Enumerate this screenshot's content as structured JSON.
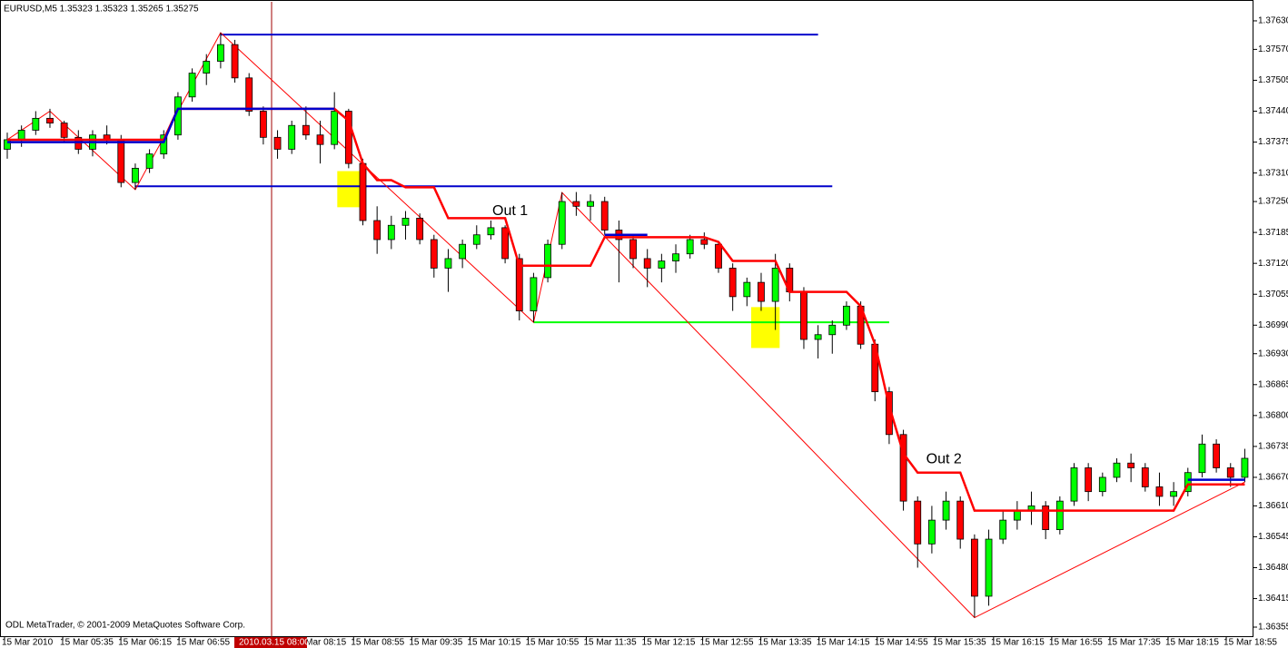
{
  "chart_data": {
    "type": "candlestick",
    "title": "EURUSD,M5  1.35323 1.35323 1.35265 1.35275",
    "footer": "ODL MetaTrader, © 2001-2009 MetaQuotes Software Corp.",
    "cursor_label": "2010.03.15 08:00",
    "ylim": [
      1.36334,
      1.3767
    ],
    "yticks": [
      {
        "value": 1.3763,
        "label": "1.37630"
      },
      {
        "value": 1.3757,
        "label": "1.37570"
      },
      {
        "value": 1.37505,
        "label": "1.37505"
      },
      {
        "value": 1.3744,
        "label": "1.37440"
      },
      {
        "value": 1.37375,
        "label": "1.37375"
      },
      {
        "value": 1.3731,
        "label": "1.37310"
      },
      {
        "value": 1.3725,
        "label": "1.37250"
      },
      {
        "value": 1.37185,
        "label": "1.37185"
      },
      {
        "value": 1.3712,
        "label": "1.37120"
      },
      {
        "value": 1.37055,
        "label": "1.37055"
      },
      {
        "value": 1.3699,
        "label": "1.36990"
      },
      {
        "value": 1.3693,
        "label": "1.36930"
      },
      {
        "value": 1.36865,
        "label": "1.36865"
      },
      {
        "value": 1.368,
        "label": "1.36800"
      },
      {
        "value": 1.36735,
        "label": "1.36735"
      },
      {
        "value": 1.3667,
        "label": "1.36670"
      },
      {
        "value": 1.3661,
        "label": "1.36610"
      },
      {
        "value": 1.36545,
        "label": "1.36545"
      },
      {
        "value": 1.3648,
        "label": "1.36480"
      },
      {
        "value": 1.36415,
        "label": "1.36415"
      },
      {
        "value": 1.36355,
        "label": "1.36355"
      }
    ],
    "xticks": [
      "15 Mar 2010",
      "15 Mar 05:35",
      "15 Mar 06:15",
      "15 Mar 06:55",
      null,
      "15 Mar 08:15",
      "15 Mar 08:55",
      "15 Mar 09:35",
      "15 Mar 10:15",
      "15 Mar 10:55",
      "15 Mar 11:35",
      "15 Mar 12:15",
      "15 Mar 12:55",
      "15 Mar 13:35",
      "15 Mar 14:15",
      "15 Mar 14:55",
      "15 Mar 15:35",
      "15 Mar 16:15",
      "15 Mar 16:55",
      "15 Mar 17:35",
      "15 Mar 18:15",
      "15 Mar 18:55"
    ],
    "bull_color": "#00ff00",
    "bear_color": "#ff0000",
    "ohlc": [
      [
        1.3736,
        1.37395,
        1.3734,
        1.3738
      ],
      [
        1.3738,
        1.3741,
        1.37365,
        1.374
      ],
      [
        1.374,
        1.3744,
        1.3739,
        1.37425
      ],
      [
        1.37425,
        1.37445,
        1.37405,
        1.37415
      ],
      [
        1.37415,
        1.3742,
        1.37375,
        1.37385
      ],
      [
        1.37385,
        1.374,
        1.3735,
        1.3736
      ],
      [
        1.3736,
        1.374,
        1.37345,
        1.3739
      ],
      [
        1.3739,
        1.3741,
        1.3737,
        1.3738
      ],
      [
        1.3738,
        1.3739,
        1.3728,
        1.3729
      ],
      [
        1.3729,
        1.3733,
        1.37275,
        1.3732
      ],
      [
        1.3732,
        1.3736,
        1.3731,
        1.3735
      ],
      [
        1.3735,
        1.374,
        1.3734,
        1.3739
      ],
      [
        1.3739,
        1.3748,
        1.3738,
        1.3747
      ],
      [
        1.3747,
        1.3753,
        1.3746,
        1.3752
      ],
      [
        1.3752,
        1.3756,
        1.37495,
        1.37545
      ],
      [
        1.37545,
        1.37605,
        1.3753,
        1.3758
      ],
      [
        1.3758,
        1.3759,
        1.375,
        1.3751
      ],
      [
        1.3751,
        1.3752,
        1.3743,
        1.3744
      ],
      [
        1.3744,
        1.3745,
        1.3737,
        1.37385
      ],
      [
        1.37385,
        1.374,
        1.3734,
        1.3736
      ],
      [
        1.3736,
        1.3742,
        1.3735,
        1.3741
      ],
      [
        1.3741,
        1.3745,
        1.3738,
        1.3739
      ],
      [
        1.3739,
        1.3742,
        1.3733,
        1.3737
      ],
      [
        1.3737,
        1.3748,
        1.3736,
        1.3744
      ],
      [
        1.3744,
        1.37445,
        1.3732,
        1.3733
      ],
      [
        1.3733,
        1.3734,
        1.372,
        1.3721
      ],
      [
        1.3721,
        1.3724,
        1.3714,
        1.3717
      ],
      [
        1.3717,
        1.3722,
        1.3715,
        1.372
      ],
      [
        1.372,
        1.3723,
        1.3717,
        1.37215
      ],
      [
        1.37215,
        1.37225,
        1.3716,
        1.3717
      ],
      [
        1.3717,
        1.3718,
        1.3709,
        1.3711
      ],
      [
        1.3711,
        1.3715,
        1.3706,
        1.3713
      ],
      [
        1.3713,
        1.3717,
        1.3711,
        1.3716
      ],
      [
        1.3716,
        1.372,
        1.3715,
        1.3718
      ],
      [
        1.3718,
        1.3721,
        1.3717,
        1.37195
      ],
      [
        1.37195,
        1.372,
        1.3712,
        1.3713
      ],
      [
        1.3713,
        1.3714,
        1.37,
        1.3702
      ],
      [
        1.3702,
        1.371,
        1.36996,
        1.3709
      ],
      [
        1.3709,
        1.3717,
        1.3708,
        1.3716
      ],
      [
        1.3716,
        1.37269,
        1.3715,
        1.3725
      ],
      [
        1.3725,
        1.3727,
        1.3722,
        1.3724
      ],
      [
        1.3724,
        1.37265,
        1.3721,
        1.3725
      ],
      [
        1.3725,
        1.3726,
        1.3718,
        1.3719
      ],
      [
        1.3719,
        1.3721,
        1.3708,
        1.3717
      ],
      [
        1.3717,
        1.3718,
        1.3711,
        1.3713
      ],
      [
        1.3713,
        1.3715,
        1.3707,
        1.3711
      ],
      [
        1.3711,
        1.3714,
        1.3708,
        1.37125
      ],
      [
        1.37125,
        1.3716,
        1.371,
        1.3714
      ],
      [
        1.3714,
        1.3718,
        1.3713,
        1.3717
      ],
      [
        1.3717,
        1.37185,
        1.3715,
        1.3716
      ],
      [
        1.3716,
        1.37165,
        1.371,
        1.3711
      ],
      [
        1.3711,
        1.3712,
        1.3702,
        1.3705
      ],
      [
        1.3705,
        1.3709,
        1.3703,
        1.3708
      ],
      [
        1.3708,
        1.371,
        1.3702,
        1.3704
      ],
      [
        1.3704,
        1.3714,
        1.3698,
        1.3711
      ],
      [
        1.3711,
        1.3712,
        1.3704,
        1.3706
      ],
      [
        1.3706,
        1.3707,
        1.3694,
        1.3696
      ],
      [
        1.3696,
        1.3699,
        1.3692,
        1.3697
      ],
      [
        1.3697,
        1.37,
        1.3693,
        1.3699
      ],
      [
        1.3699,
        1.3704,
        1.3698,
        1.3703
      ],
      [
        1.3703,
        1.3704,
        1.3694,
        1.3695
      ],
      [
        1.3695,
        1.3696,
        1.3683,
        1.3685
      ],
      [
        1.3685,
        1.3686,
        1.3674,
        1.3676
      ],
      [
        1.3676,
        1.3677,
        1.366,
        1.3662
      ],
      [
        1.3662,
        1.3663,
        1.3648,
        1.3653
      ],
      [
        1.3653,
        1.3661,
        1.3651,
        1.3658
      ],
      [
        1.3658,
        1.3664,
        1.3656,
        1.3662
      ],
      [
        1.3662,
        1.3663,
        1.3652,
        1.3654
      ],
      [
        1.3654,
        1.3655,
        1.36375,
        1.3642
      ],
      [
        1.3642,
        1.3656,
        1.364,
        1.3654
      ],
      [
        1.3654,
        1.366,
        1.3653,
        1.3658
      ],
      [
        1.3658,
        1.3662,
        1.3656,
        1.366
      ],
      [
        1.366,
        1.3664,
        1.3657,
        1.3661
      ],
      [
        1.3661,
        1.3662,
        1.3654,
        1.3656
      ],
      [
        1.3656,
        1.3663,
        1.3655,
        1.3662
      ],
      [
        1.3662,
        1.367,
        1.3661,
        1.3669
      ],
      [
        1.3669,
        1.367,
        1.3662,
        1.3664
      ],
      [
        1.3664,
        1.3668,
        1.3663,
        1.3667
      ],
      [
        1.3667,
        1.3671,
        1.3666,
        1.367
      ],
      [
        1.367,
        1.3672,
        1.3666,
        1.3669
      ],
      [
        1.3669,
        1.367,
        1.3664,
        1.3665
      ],
      [
        1.3665,
        1.3668,
        1.3661,
        1.3663
      ],
      [
        1.3663,
        1.3666,
        1.3661,
        1.3664
      ],
      [
        1.3664,
        1.3669,
        1.3663,
        1.3668
      ],
      [
        1.3668,
        1.3676,
        1.3667,
        1.3674
      ],
      [
        1.3674,
        1.3675,
        1.3668,
        1.3669
      ],
      [
        1.3669,
        1.367,
        1.3665,
        1.3667
      ],
      [
        1.3667,
        1.3673,
        1.3666,
        1.3671
      ]
    ],
    "series": [
      {
        "color": "#ff0000",
        "values": [
          1.3738,
          1.3738,
          1.3738,
          1.3738,
          1.3738,
          1.3738,
          1.3738,
          1.3738,
          1.3738,
          1.3738,
          1.3738,
          1.3738,
          1.37445,
          1.37445,
          1.37445,
          1.37445,
          1.37445,
          1.37445,
          1.37445,
          1.37445,
          1.37445,
          1.37445,
          1.37445,
          1.37445,
          1.3742,
          1.3733,
          1.37295,
          1.37295,
          1.3728,
          1.3728,
          1.3728,
          1.37215,
          1.37215,
          1.37215,
          1.37215,
          1.37215,
          1.37115,
          1.37115,
          1.37115,
          1.37115,
          1.37115,
          1.37115,
          1.37175,
          1.37175,
          1.37175,
          1.37175,
          1.37175,
          1.37175,
          1.37175,
          1.37175,
          1.37165,
          1.37125,
          1.37125,
          1.37125,
          1.37125,
          1.3706,
          1.3706,
          1.3706,
          1.3706,
          1.3706,
          1.3703,
          1.3695,
          1.3682,
          1.3672,
          1.3668,
          1.3668,
          1.3668,
          1.3668,
          1.366,
          1.366,
          1.366,
          1.366,
          1.366,
          1.366,
          1.366,
          1.366,
          1.366,
          1.366,
          1.366,
          1.366,
          1.366,
          1.366,
          1.366,
          1.36655,
          1.36655,
          1.36655,
          1.36655,
          1.36655
        ]
      },
      {
        "color": "#0000cc",
        "values": [
          1.37375,
          1.37375,
          1.37375,
          1.37375,
          1.37375,
          1.37375,
          1.37375,
          1.37375,
          1.37375,
          1.37375,
          1.37375,
          1.37375,
          1.37445,
          1.37445,
          1.37445,
          1.37445,
          1.37445,
          1.37445,
          1.37445,
          1.37445,
          1.37445,
          1.37445,
          1.37445,
          1.37445,
          null,
          null,
          null,
          null,
          null,
          null,
          null,
          null,
          null,
          null,
          null,
          null,
          null,
          null,
          null,
          null,
          null,
          null,
          1.3718,
          1.3718,
          1.3718,
          1.3718,
          null,
          null,
          null,
          null,
          null,
          null,
          null,
          null,
          null,
          null,
          null,
          null,
          null,
          null,
          null,
          null,
          null,
          null,
          null,
          null,
          null,
          null,
          null,
          null,
          null,
          null,
          null,
          null,
          null,
          null,
          null,
          null,
          null,
          null,
          null,
          null,
          null,
          1.36665,
          1.36665,
          1.36665,
          1.36665,
          1.36665
        ]
      }
    ],
    "zigzag": {
      "color": "#ff0000",
      "x": [
        0,
        3,
        9,
        15,
        37,
        39,
        68,
        87
      ],
      "values": [
        1.3738,
        1.3744,
        1.37275,
        1.37605,
        1.36996,
        1.37269,
        1.36375,
        1.3666
      ]
    },
    "levels": [
      {
        "color": "#0000cc",
        "value": 1.37601,
        "x": [
          15,
          57
        ]
      },
      {
        "color": "#0000cc",
        "value": 1.37282,
        "x": [
          9,
          58
        ]
      },
      {
        "color": "#00ff00",
        "value": 1.36996,
        "x": [
          37,
          62
        ]
      }
    ],
    "highlights": [
      {
        "color": "#ffff00",
        "x": [
          23.2,
          25
        ],
        "ylim": [
          1.37238,
          1.37314
        ]
      },
      {
        "color": "#ffff00",
        "x": [
          52.3,
          54.3
        ],
        "ylim": [
          1.36942,
          1.37028
        ]
      }
    ],
    "annotations": [
      {
        "text": "Out 1",
        "x": 34.1,
        "y": 1.3723
      },
      {
        "text": "Out 2",
        "x": 64.6,
        "y": 1.36708
      }
    ]
  }
}
